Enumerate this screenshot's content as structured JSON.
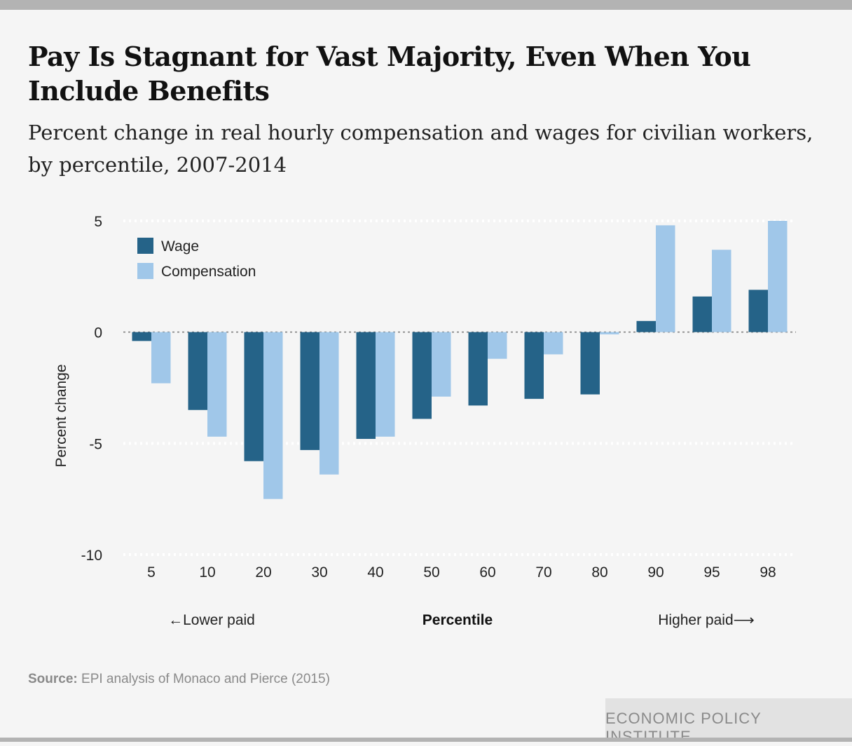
{
  "title": "Pay Is Stagnant for Vast Majority, Even When You Include Benefits",
  "subtitle": "Percent change in real hourly compensation and wages for civilian workers, by percentile, 2007-2014",
  "source_label": "Source:",
  "source_text": "EPI analysis of Monaco and Pierce (2015)",
  "brand": "ECONOMIC POLICY INSTITUTE",
  "colors": {
    "wage": "#256388",
    "compensation": "#a0c7e9",
    "grid": "#ffffff",
    "zero": "#777777"
  },
  "chart_data": {
    "type": "bar",
    "categories": [
      "5",
      "10",
      "20",
      "30",
      "40",
      "50",
      "60",
      "70",
      "80",
      "90",
      "95",
      "98"
    ],
    "series": [
      {
        "name": "Wage",
        "values": [
          -0.4,
          -3.5,
          -5.8,
          -5.3,
          -4.8,
          -3.9,
          -3.3,
          -3.0,
          -2.8,
          0.5,
          1.6,
          1.9
        ]
      },
      {
        "name": "Compensation",
        "values": [
          -2.3,
          -4.7,
          -7.5,
          -6.4,
          -4.7,
          -2.9,
          -1.2,
          -1.0,
          -0.1,
          4.8,
          3.7,
          5.0
        ]
      }
    ],
    "ylabel": "Percent change",
    "xlabel": "Percentile",
    "x_left_note": "←Lower paid",
    "x_right_note": "Higher paid⟶",
    "ylim": [
      -10,
      5
    ],
    "yticks": [
      5,
      0,
      -5,
      -10
    ],
    "ytick_labels": [
      "5",
      "0",
      "-5",
      "-10"
    ],
    "legend": "top-left",
    "grid": true
  }
}
